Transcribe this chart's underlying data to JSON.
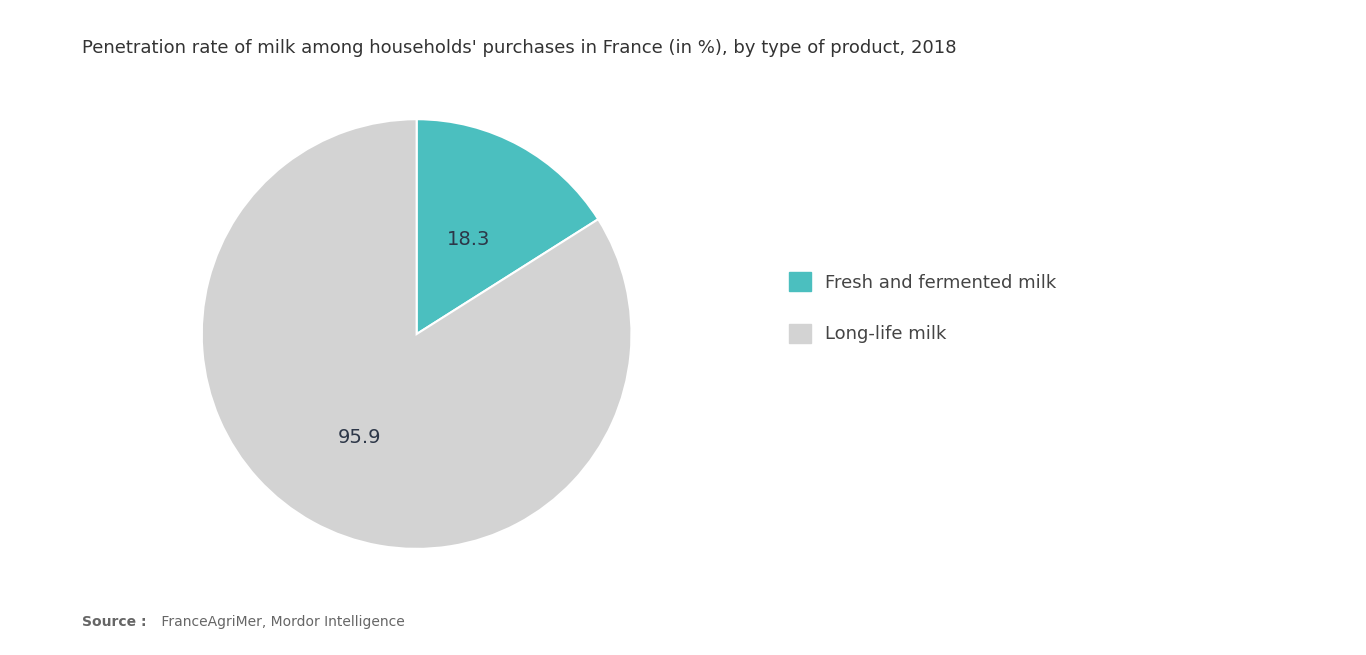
{
  "title": "Penetration rate of milk among households' purchases in France (in %), by type of product, 2018",
  "values": [
    18.3,
    95.9
  ],
  "labels": [
    "Fresh and fermented milk",
    "Long-life milk"
  ],
  "colors": [
    "#4bbfbf",
    "#d3d3d3"
  ],
  "label_values": [
    "18.3",
    "95.9"
  ],
  "source_bold": "Source :",
  "source_rest": " FranceAgriMer, Mordor Intelligence",
  "background_color": "#ffffff",
  "title_fontsize": 13,
  "label_fontsize": 14,
  "legend_fontsize": 13,
  "source_fontsize": 10
}
